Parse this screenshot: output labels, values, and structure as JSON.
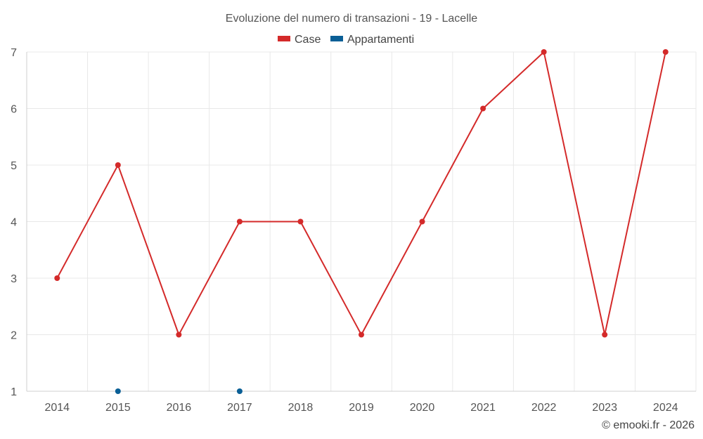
{
  "chart_data": {
    "type": "line",
    "title": "Evoluzione del numero di transazioni - 19 - Lacelle",
    "x": [
      "2014",
      "2015",
      "2016",
      "2017",
      "2018",
      "2019",
      "2020",
      "2021",
      "2022",
      "2023",
      "2024"
    ],
    "series": [
      {
        "name": "Case",
        "color": "#d42a2a",
        "values": [
          3,
          5,
          2,
          4,
          4,
          2,
          4,
          6,
          7,
          2,
          7
        ],
        "style": "line-with-markers"
      },
      {
        "name": "Appartamenti",
        "color": "#0a5f96",
        "values": [
          null,
          1,
          null,
          1,
          null,
          null,
          null,
          null,
          null,
          null,
          null
        ],
        "style": "markers"
      }
    ],
    "y_ticks": [
      "1",
      "2",
      "3",
      "4",
      "5",
      "6",
      "7"
    ],
    "ylim": [
      1,
      7
    ],
    "grid": true,
    "legend_position": "top-center",
    "credit": "© emooki.fr - 2026"
  }
}
